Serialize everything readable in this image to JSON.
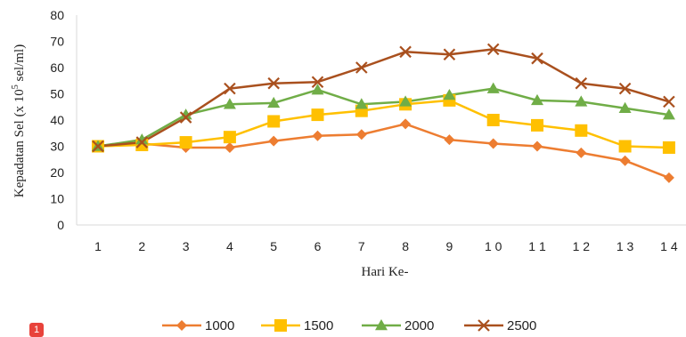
{
  "badge": {
    "text": "1"
  },
  "chart_data": {
    "type": "line",
    "x": [
      1,
      2,
      3,
      4,
      5,
      6,
      7,
      8,
      9,
      10,
      11,
      12,
      13,
      14
    ],
    "x_tick_labels": [
      "1",
      "2",
      "3",
      "4",
      "5",
      "6",
      "7",
      "8",
      "9",
      "1 0",
      "1 1",
      "1 2",
      "1 3",
      "1 4"
    ],
    "xlabel": "Hari Ke-",
    "ylabel_prefix": "Kepadatan Sel (x 10",
    "ylabel_sup": "5",
    "ylabel_suffix": " sel/ml)",
    "ylim": [
      0,
      80
    ],
    "y_ticks": [
      0,
      10,
      20,
      30,
      40,
      50,
      60,
      70,
      80
    ],
    "grid": false,
    "legend_position": "bottom",
    "series": [
      {
        "name": "1000",
        "color": "#ED7D31",
        "marker": "diamond",
        "values": [
          30,
          31,
          29.5,
          29.5,
          32,
          34,
          34.5,
          38.5,
          32.5,
          31,
          30,
          27.5,
          24.5,
          18
        ]
      },
      {
        "name": "1500",
        "color": "#FFC000",
        "marker": "square",
        "values": [
          30,
          30.5,
          31.5,
          33.5,
          39.5,
          42,
          43.5,
          46,
          47.5,
          40,
          38,
          36,
          30,
          29.5
        ]
      },
      {
        "name": "2000",
        "color": "#70AD47",
        "marker": "triangle",
        "values": [
          30,
          32.5,
          42,
          46,
          46.5,
          51.5,
          46,
          47,
          49.5,
          52,
          47.5,
          47,
          44.5,
          42
        ]
      },
      {
        "name": "2500",
        "color": "#A9501E",
        "marker": "cross",
        "values": [
          30,
          31.5,
          41,
          52,
          54,
          54.5,
          60,
          66,
          65,
          67,
          63.5,
          54,
          52,
          47
        ]
      }
    ]
  }
}
